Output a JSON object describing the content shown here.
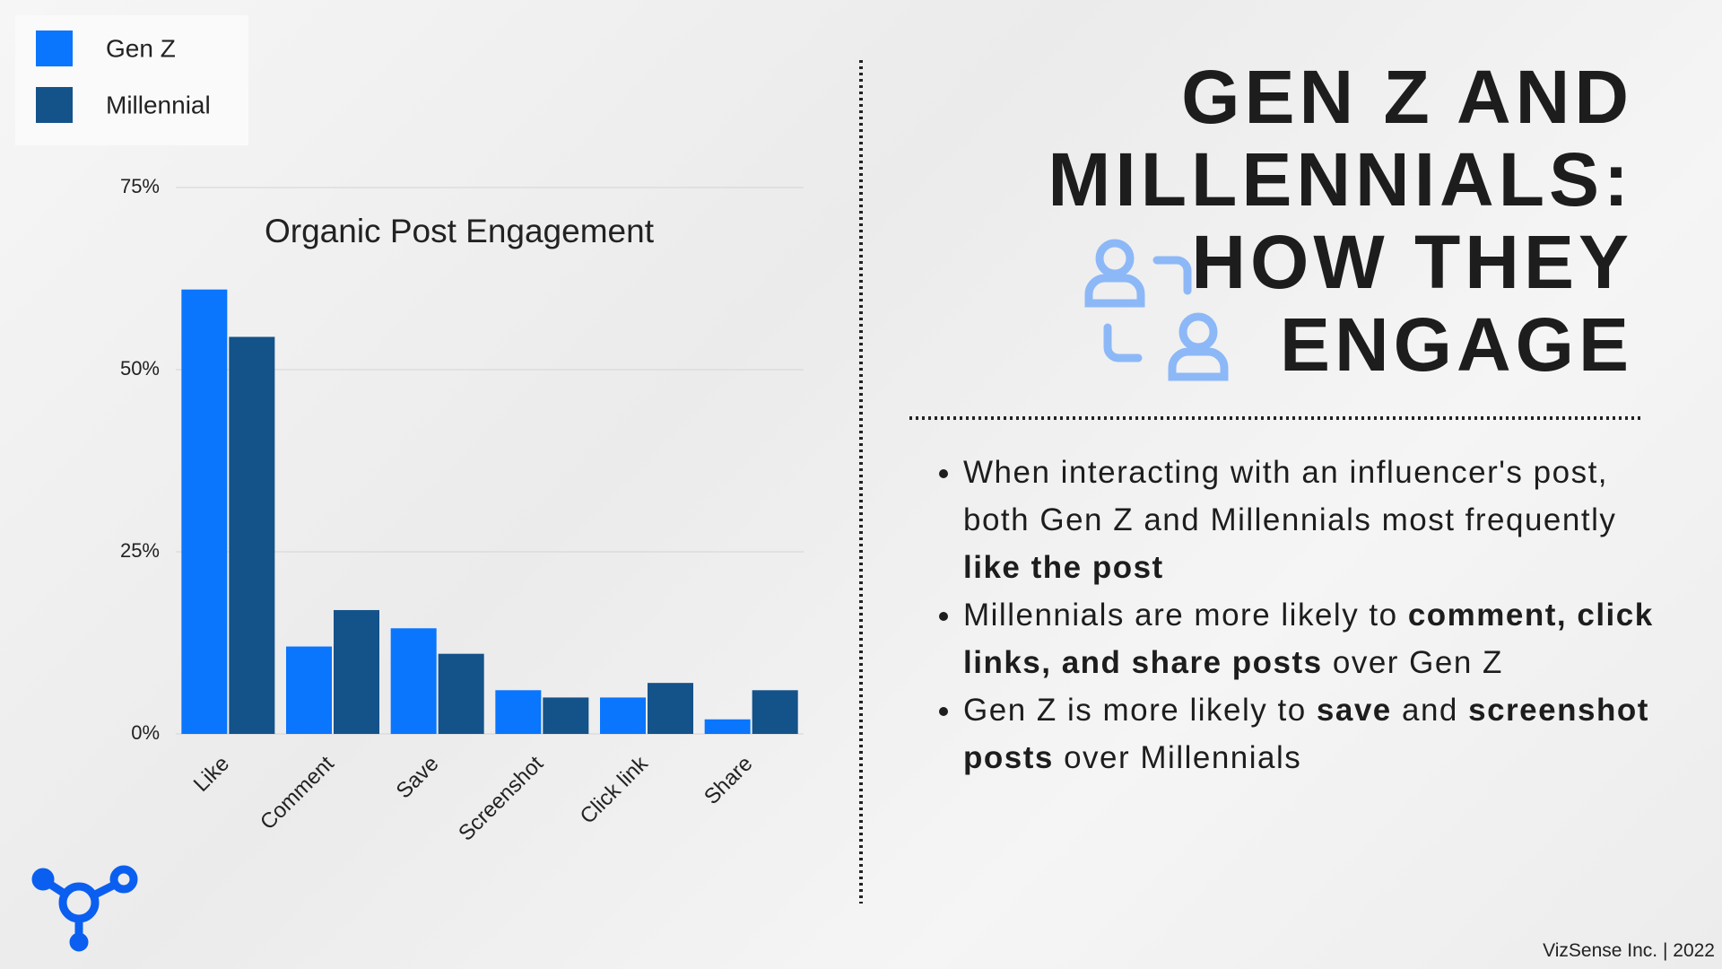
{
  "chart_data": {
    "type": "bar",
    "title": "Organic Post Engagement",
    "categories": [
      "Like",
      "Comment",
      "Save",
      "Screenshot",
      "Click link",
      "Share"
    ],
    "series": [
      {
        "name": "Gen Z",
        "color": "#0a75fd",
        "values": [
          61,
          12,
          14.5,
          6,
          5,
          2
        ]
      },
      {
        "name": "Millennial",
        "color": "#14528a",
        "values": [
          54.5,
          17,
          11,
          5,
          7,
          6
        ]
      }
    ],
    "ylim": [
      0,
      75
    ],
    "yticks": [
      {
        "value": 0,
        "label": "0%"
      },
      {
        "value": 25,
        "label": "25%"
      },
      {
        "value": 50,
        "label": "50%"
      },
      {
        "value": 75,
        "label": "75%"
      }
    ],
    "grid": true
  },
  "heading": {
    "lines": [
      "GEN Z AND",
      "MILLENNIALS:",
      "HOW THEY",
      "ENGAGE"
    ]
  },
  "bullets": [
    [
      {
        "text": "When interacting with an influencer's post, both Gen Z and Millennials most frequently ",
        "bold": false
      },
      {
        "text": "like the post",
        "bold": true
      }
    ],
    [
      {
        "text": "Millennials are more likely to ",
        "bold": false
      },
      {
        "text": "comment, click links, and share posts",
        "bold": true
      },
      {
        "text": " over Gen Z",
        "bold": false
      }
    ],
    [
      {
        "text": "Gen Z is more likely to ",
        "bold": false
      },
      {
        "text": "save",
        "bold": true
      },
      {
        "text": " and ",
        "bold": false
      },
      {
        "text": "screenshot posts",
        "bold": true
      },
      {
        "text": " over Millennials",
        "bold": false
      }
    ]
  ],
  "footer": "VizSense Inc. | 2022"
}
